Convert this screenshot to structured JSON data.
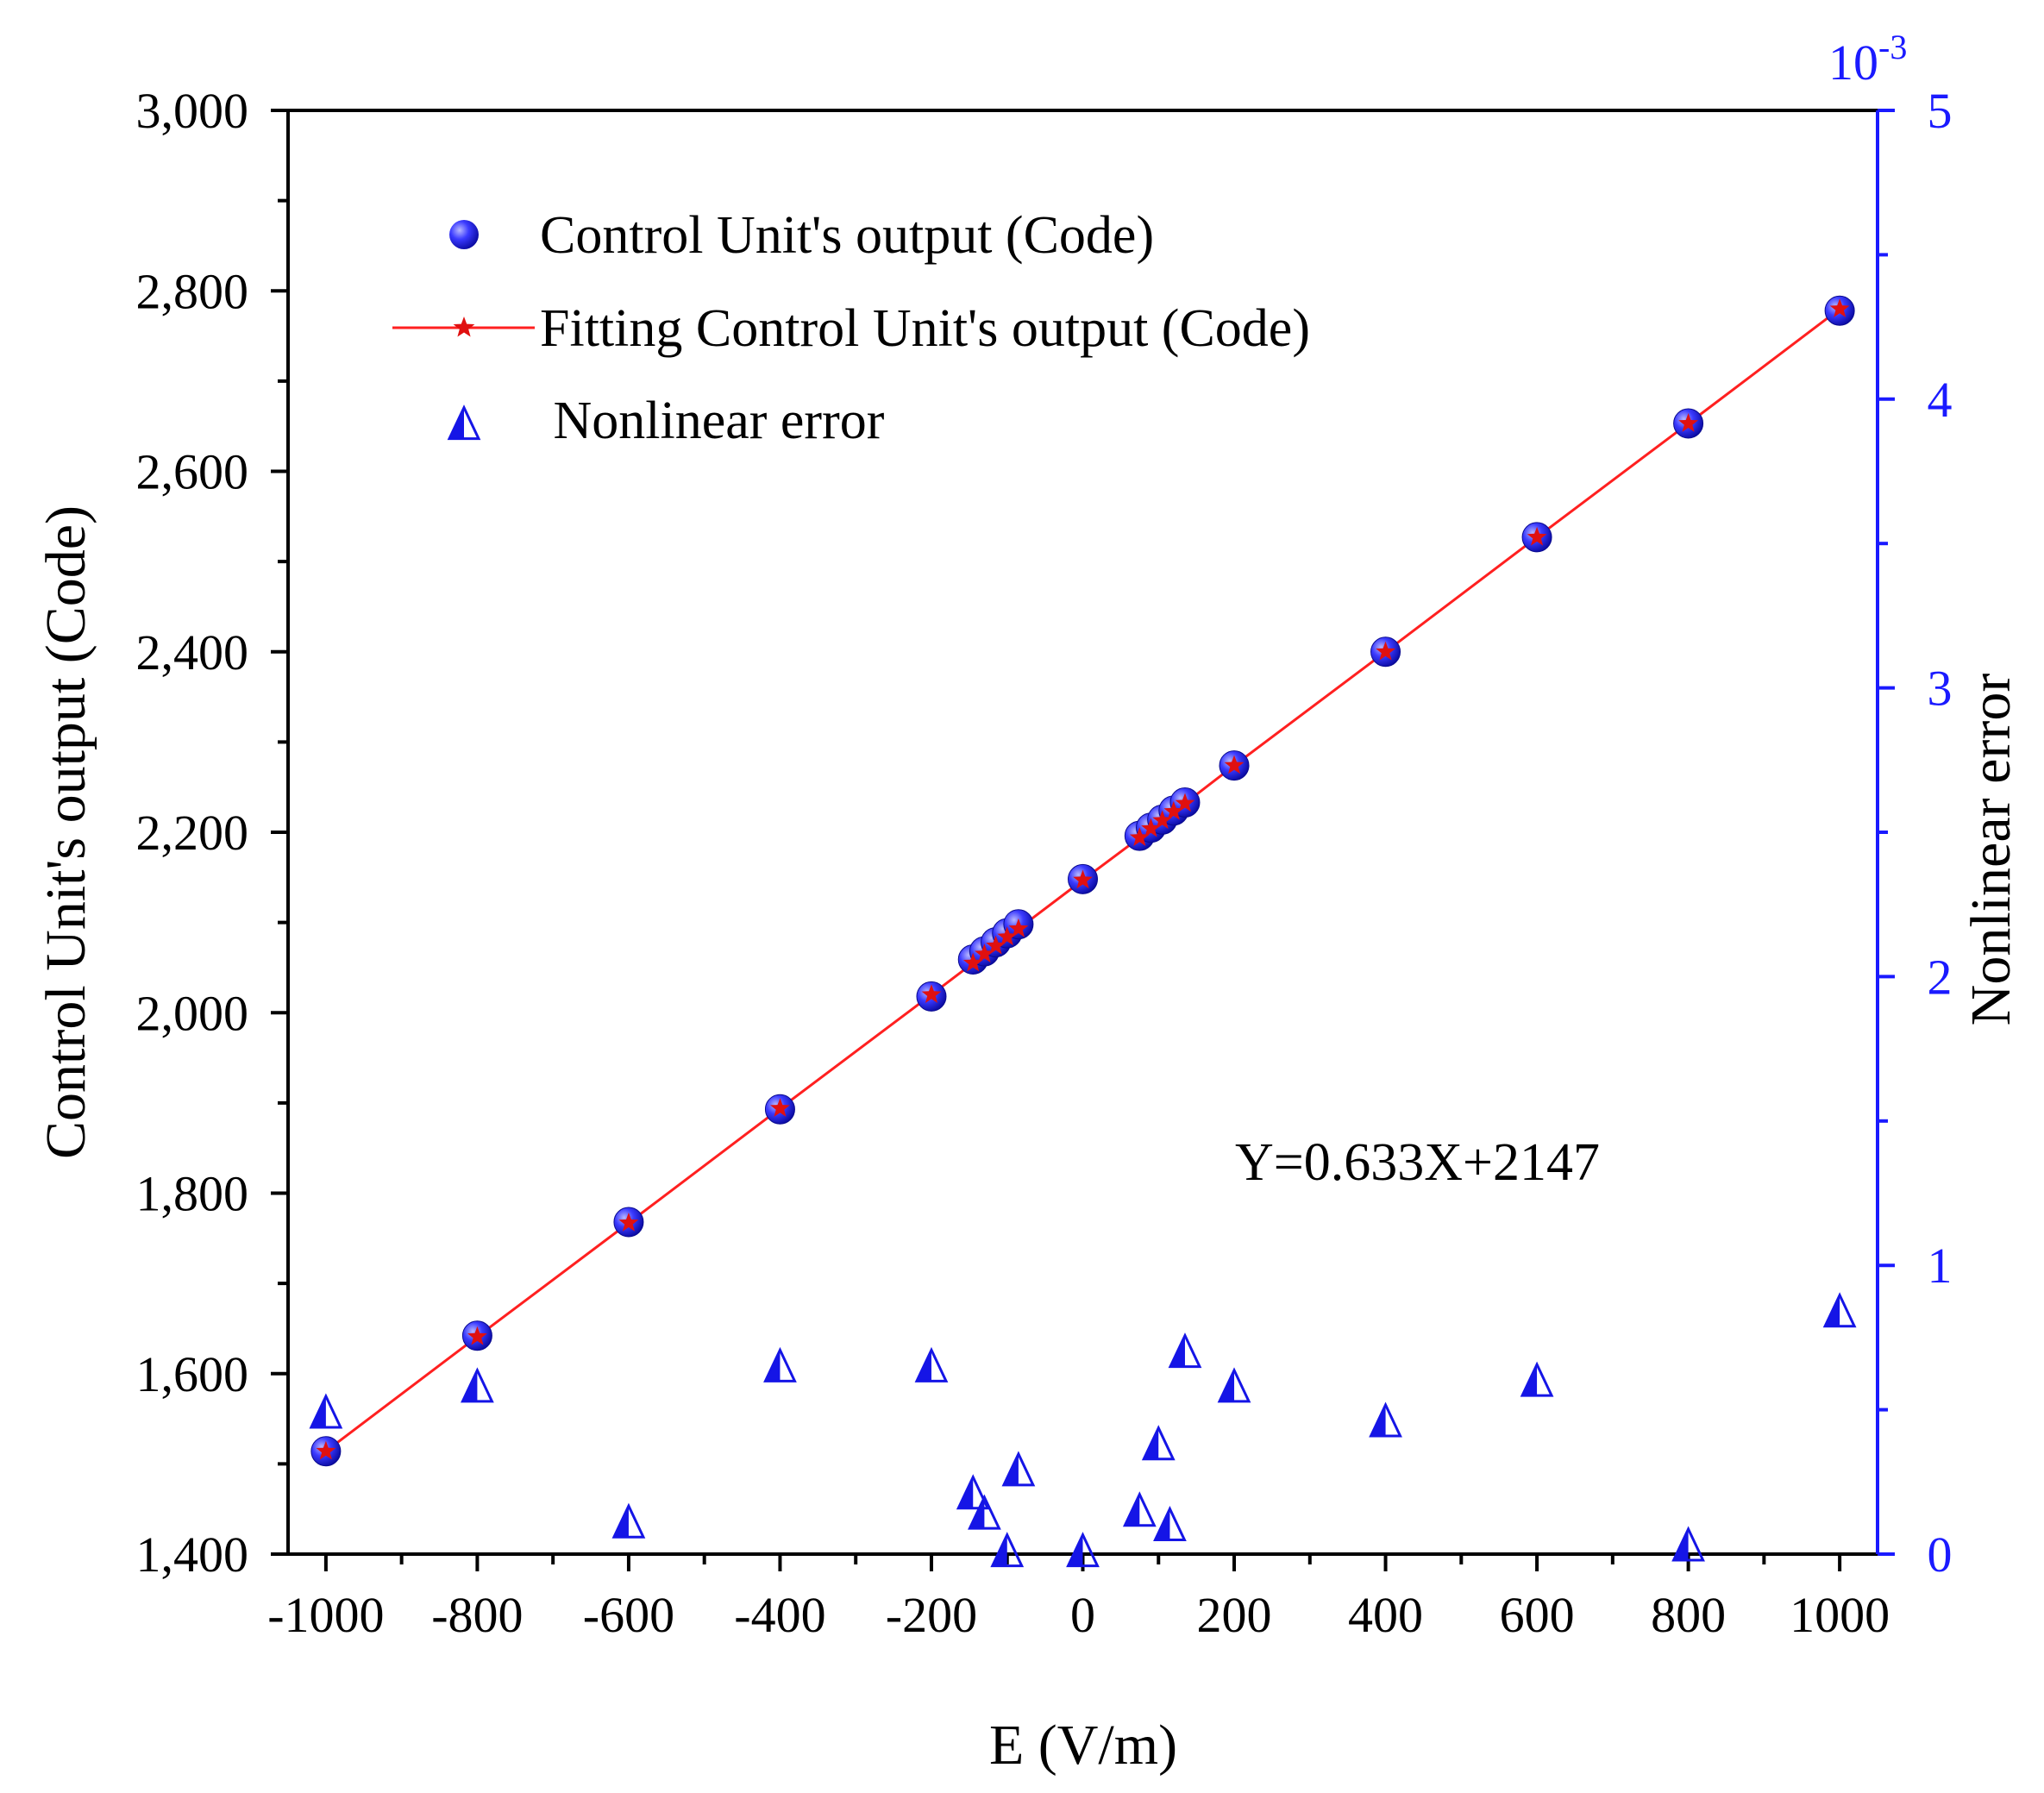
{
  "chart_data": {
    "type": "scatter",
    "xlabel": "E (V/m)",
    "ylabel_left": "Control Unit's output  (Code)",
    "ylabel_right": "Nonlinear error",
    "right_axis_multiplier": "10",
    "right_axis_exponent": "-3",
    "xlim": [
      -1050,
      1050
    ],
    "ylim_left": [
      1400,
      3000
    ],
    "ylim_right": [
      0,
      5
    ],
    "x_ticks": [
      -1000,
      -800,
      -600,
      -400,
      -200,
      0,
      200,
      400,
      600,
      800,
      1000
    ],
    "x_tick_labels": [
      "-1000",
      "-800",
      "-600",
      "-400",
      "-200",
      "0",
      "200",
      "400",
      "600",
      "800",
      "1000"
    ],
    "y_left_ticks": [
      1400,
      1600,
      1800,
      2000,
      2200,
      2400,
      2600,
      2800,
      3000
    ],
    "y_left_tick_labels": [
      "1,400",
      "1,600",
      "1,800",
      "2,000",
      "2,200",
      "2,400",
      "2,600",
      "2,800",
      "3,000"
    ],
    "y_right_ticks": [
      0,
      1,
      2,
      3,
      4,
      5
    ],
    "y_right_tick_labels": [
      "0",
      "1",
      "2",
      "3",
      "4",
      "5"
    ],
    "legend": [
      "Control Unit's output (Code)",
      "Fitting Control Unit's output (Code)",
      " Nonlinear error"
    ],
    "annotation": "Y=0.633X+2147",
    "series": [
      {
        "name": "Control Unit's output (Code)",
        "marker": "circle",
        "axis": "left",
        "x": [
          -1000,
          -800,
          -600,
          -400,
          -200,
          -145,
          -130,
          -115,
          -100,
          -85,
          0,
          75,
          90,
          105,
          120,
          135,
          200,
          400,
          600,
          800,
          1000
        ],
        "y": [
          1514,
          1642,
          1768,
          1893,
          2018,
          2059,
          2068,
          2078,
          2088,
          2098,
          2148,
          2196,
          2205,
          2214,
          2224,
          2233,
          2274,
          2400,
          2527,
          2653,
          2778
        ]
      },
      {
        "name": "Fitting Control Unit's output (Code)",
        "marker": "star-line",
        "axis": "left",
        "x": [
          -1000,
          -800,
          -600,
          -400,
          -200,
          -145,
          -130,
          -115,
          -100,
          -85,
          0,
          75,
          90,
          105,
          120,
          135,
          200,
          400,
          600,
          800,
          1000
        ],
        "y": [
          1514,
          1641,
          1767,
          1894,
          2020,
          2055,
          2065,
          2074,
          2084,
          2093,
          2147,
          2194,
          2204,
          2213,
          2223,
          2232,
          2274,
          2400,
          2527,
          2653,
          2780
        ]
      },
      {
        "name": "Nonlinear error",
        "marker": "triangle",
        "axis": "right",
        "x": [
          -1000,
          -800,
          -600,
          -400,
          -200,
          -145,
          -130,
          -100,
          -85,
          0,
          75,
          100,
          115,
          135,
          200,
          400,
          600,
          800,
          1000
        ],
        "y": [
          0.48,
          0.57,
          0.1,
          0.64,
          0.64,
          0.2,
          0.13,
          0.0,
          0.28,
          0.0,
          0.14,
          0.37,
          0.09,
          0.69,
          0.57,
          0.45,
          0.59,
          0.02,
          0.83
        ]
      }
    ]
  },
  "colors": {
    "left_axis": "#000000",
    "right_axis": "#1a1aff",
    "circle_marker": "#1c1cf0",
    "fit_line": "#ff2020",
    "star_marker": "#e01010",
    "triangle_marker": "#1515e6"
  }
}
